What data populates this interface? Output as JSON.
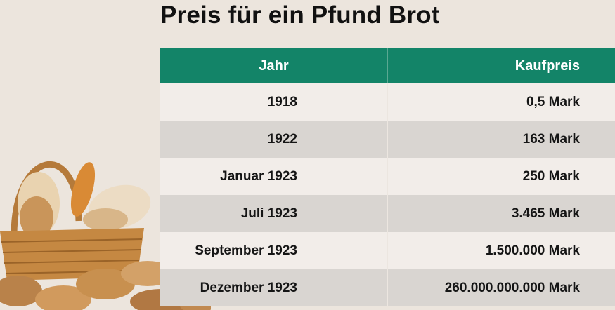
{
  "title": "Preis für ein Pfund Brot",
  "table": {
    "headers": [
      "Jahr",
      "Kaufpreis"
    ],
    "rows": [
      [
        "1918",
        "0,5 Mark"
      ],
      [
        "1922",
        "163 Mark"
      ],
      [
        "Januar 1923",
        "250 Mark"
      ],
      [
        "Juli 1923",
        "3.465 Mark"
      ],
      [
        "September 1923",
        "1.500.000 Mark"
      ],
      [
        "Dezember 1923",
        "260.000.000.000 Mark"
      ]
    ]
  },
  "colors": {
    "header": "#138468",
    "row_light": "#f2ede9",
    "row_dark": "#d9d5d1",
    "background": "#ece5dd"
  },
  "image": {
    "icon": "bread-basket-icon"
  }
}
